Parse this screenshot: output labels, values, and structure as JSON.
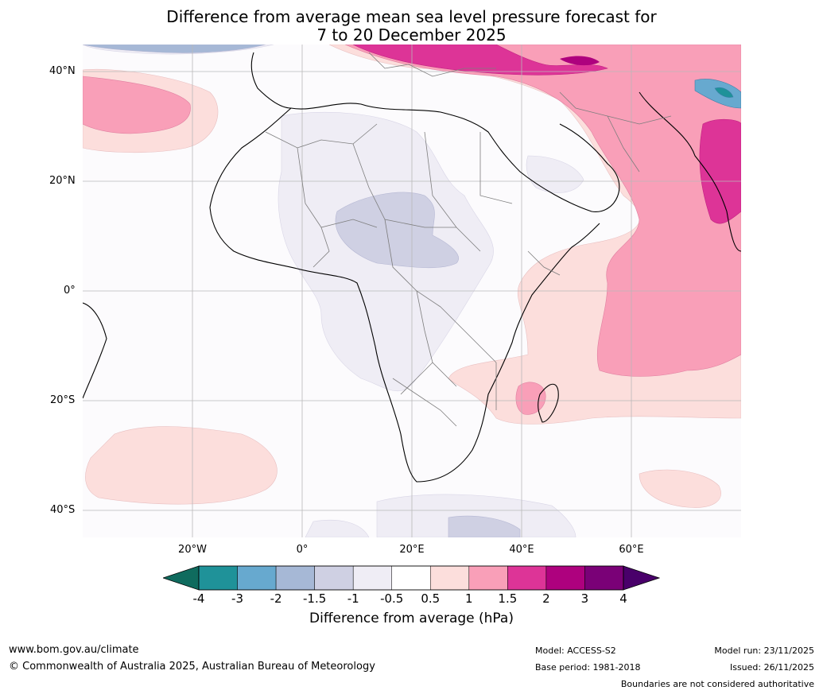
{
  "title_line1": "Difference from average mean sea level pressure forecast for",
  "title_line2": "7 to 20 December 2025",
  "map": {
    "lat_labels": [
      "40°N",
      "20°N",
      "0°",
      "20°S",
      "40°S"
    ],
    "lon_labels": [
      "20°W",
      "0°",
      "20°E",
      "40°E",
      "60°E"
    ]
  },
  "colorbar": {
    "ticks": [
      "-4",
      "-3",
      "-2",
      "-1.5",
      "-1",
      "-0.5",
      "0.5",
      "1",
      "1.5",
      "2",
      "3",
      "4"
    ],
    "colors": [
      "#0f6b5e",
      "#1f9299",
      "#67a9cf",
      "#a6b8d6",
      "#cfd0e3",
      "#efedf5",
      "#ffffff",
      "#fcdedc",
      "#f99fb8",
      "#dd3497",
      "#ae017e",
      "#7a0177",
      "#49006a"
    ],
    "label": "Difference from average (hPa)"
  },
  "footer": {
    "website": "www.bom.gov.au/climate",
    "copyright": "© Commonwealth of Australia 2025, Australian Bureau of Meteorology",
    "model": "Model: ACCESS-S2",
    "base_period": "Base period: 1981-2018",
    "model_run": "Model run: 23/11/2025",
    "issued": "Issued: 26/11/2025",
    "disclaimer": "Boundaries are not considered authoritative"
  }
}
